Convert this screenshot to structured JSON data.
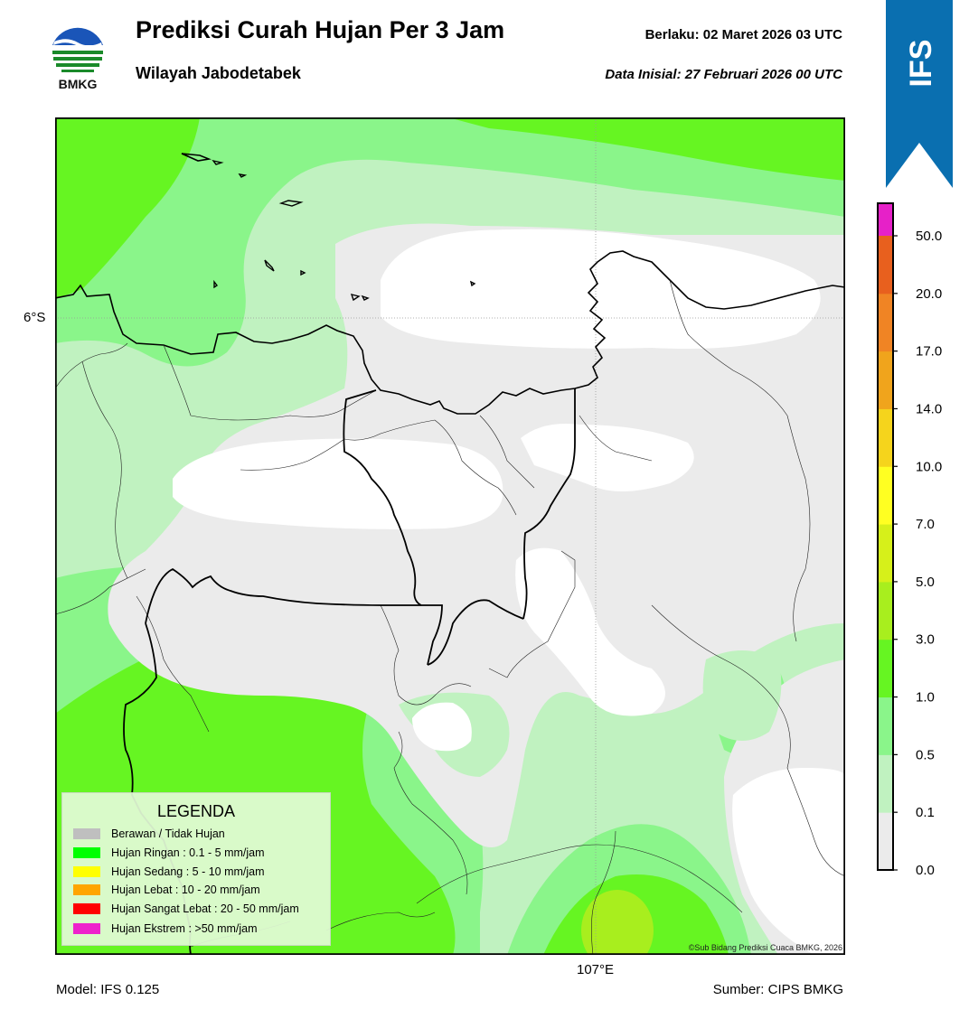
{
  "header": {
    "title": "Prediksi Curah Hujan Per 3 Jam",
    "subtitle": "Wilayah Jabodetabek",
    "valid_label": "Berlaku:  02 Maret 2026 03 UTC",
    "init_label": "Data Inisial:  27 Februari 2026 00 UTC",
    "logo_text": "BMKG",
    "ribbon_text": "IFS"
  },
  "map": {
    "lat_label": "6°S",
    "lon_label": "107°E",
    "credit": "©Sub Bidang Prediksi Cuaca BMKG, 2026"
  },
  "legend": {
    "title": "LEGENDA",
    "items": [
      {
        "label": "Berawan / Tidak Hujan",
        "color": "#bfbfbf"
      },
      {
        "label": "Hujan Ringan : 0.1 - 5 mm/jam",
        "color": "#00ff00"
      },
      {
        "label": "Hujan Sedang : 5 - 10 mm/jam",
        "color": "#ffff00"
      },
      {
        "label": "Hujan Lebat : 10 - 20 mm/jam",
        "color": "#ffa500"
      },
      {
        "label": "Hujan Sangat Lebat : 20 - 50 mm/jam",
        "color": "#ff0000"
      },
      {
        "label": "Hujan Ekstrem : >50 mm/jam",
        "color": "#ee22cc"
      }
    ]
  },
  "colorbar": {
    "ticks": [
      "0.0",
      "0.1",
      "0.5",
      "1.0",
      "3.0",
      "5.0",
      "7.0",
      "10.0",
      "14.0",
      "17.0",
      "20.0",
      "50.0"
    ],
    "colors": [
      "#ebebeb",
      "#c0f2c0",
      "#8af58a",
      "#66f522",
      "#a8ee1e",
      "#d6f01a",
      "#ffff22",
      "#f5d41c",
      "#f0a41c",
      "#f08424",
      "#e8601e",
      "#e82818",
      "#e621c8"
    ]
  },
  "footer": {
    "model": "Model: IFS 0.125",
    "source": "Sumber: CIPS BMKG"
  }
}
